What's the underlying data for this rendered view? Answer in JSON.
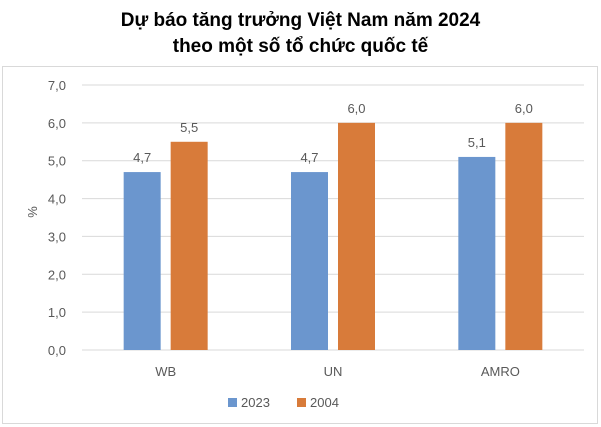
{
  "chart_data": {
    "type": "bar",
    "title": [
      "Dự báo tăng trưởng Việt Nam năm 2024",
      "theo một số tổ chức quốc tế"
    ],
    "ylabel": "%",
    "xlabel": "",
    "categories": [
      "WB",
      "UN",
      "AMRO"
    ],
    "series": [
      {
        "name": "2023",
        "values": [
          4.7,
          4.7,
          5.1
        ],
        "labels": [
          "4,7",
          "4,7",
          "5,1"
        ],
        "color": "#6b96ce"
      },
      {
        "name": "2004",
        "values": [
          5.5,
          6.0,
          6.0
        ],
        "labels": [
          "5,5",
          "6,0",
          "6,0"
        ],
        "color": "#d87b3a"
      }
    ],
    "ylim": [
      0,
      7
    ],
    "yticks": [
      0,
      1,
      2,
      3,
      4,
      5,
      6,
      7
    ],
    "ytick_labels": [
      "0,0",
      "1,0",
      "2,0",
      "3,0",
      "4,0",
      "5,0",
      "6,0",
      "7,0"
    ],
    "grid": true,
    "legend_position": "bottom",
    "gridline_color": "#d9d9d9",
    "text_color": "#595959"
  }
}
